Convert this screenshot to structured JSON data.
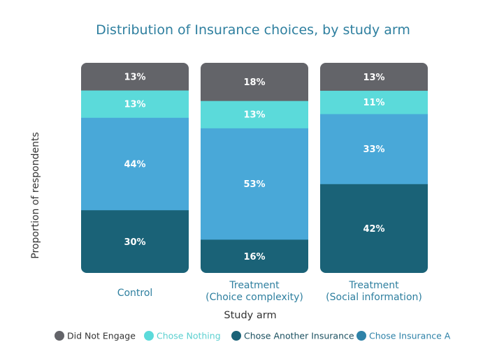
{
  "chart_data": {
    "type": "bar",
    "stacked": true,
    "title": "Distribution of Insurance choices, by study arm",
    "xlabel": "Study arm",
    "ylabel": "Proportion of respondents",
    "ylim": [
      0,
      100
    ],
    "grid": false,
    "legend_position": "bottom",
    "categories": [
      [
        "Control"
      ],
      [
        "Treatment",
        "(Choice complexity)"
      ],
      [
        "Treatment",
        "(Social information)"
      ]
    ],
    "series": [
      {
        "name": "Chose Another Insurance",
        "values": [
          30,
          16,
          42
        ],
        "labels": [
          "30%",
          "16%",
          "42%"
        ],
        "color": "#1a6277",
        "label_color": "#ffffff"
      },
      {
        "name": "Chose Insurance A",
        "values": [
          44,
          53,
          33
        ],
        "labels": [
          "44%",
          "53%",
          "33%"
        ],
        "color": "#49a8d8",
        "label_color": "#ffffff"
      },
      {
        "name": "Chose Nothing",
        "values": [
          13,
          13,
          11
        ],
        "labels": [
          "13%",
          "13%",
          "11%"
        ],
        "color": "#5bdada",
        "label_color": "#ffffff"
      },
      {
        "name": "Did Not Engage",
        "values": [
          13,
          18,
          13
        ],
        "labels": [
          "13%",
          "18%",
          "13%"
        ],
        "color": "#636469",
        "label_color": "#ffffff"
      }
    ],
    "legend": [
      {
        "name": "Did Not Engage",
        "color": "#636469",
        "text_color": "#333333"
      },
      {
        "name": "Chose Nothing",
        "color": "#5bdada",
        "text_color": "#5bd0d0"
      },
      {
        "name": "Chose Another Insurance",
        "color": "#1a6277",
        "text_color": "#1a4f5f"
      },
      {
        "name": "Chose Insurance A",
        "color": "#2e82a8",
        "text_color": "#2e82a8"
      }
    ]
  }
}
